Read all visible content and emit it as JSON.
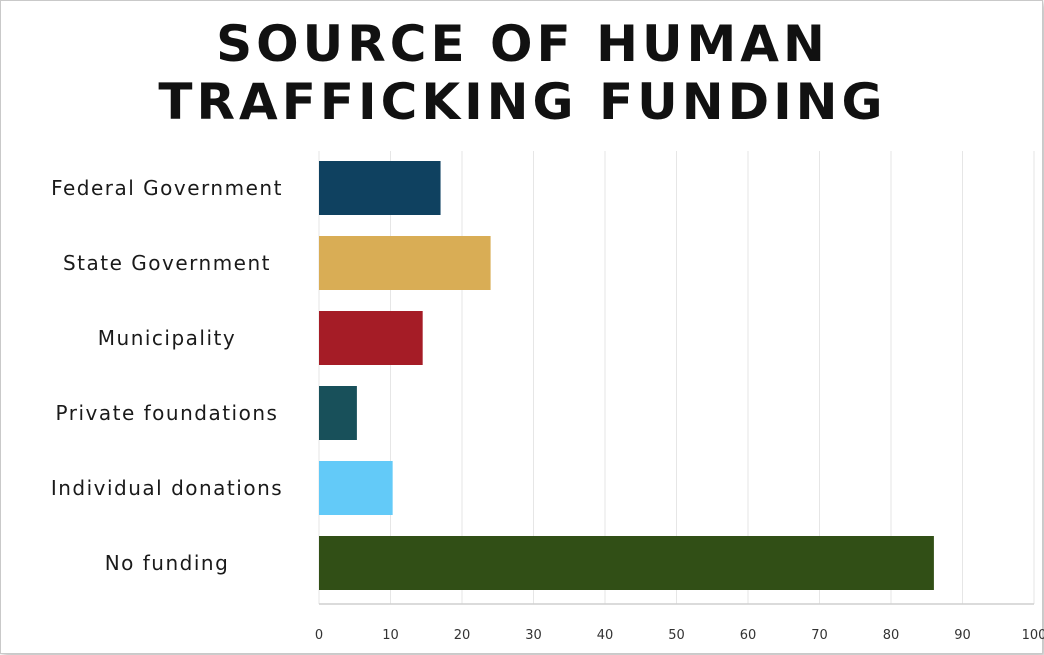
{
  "chart_data": {
    "type": "bar",
    "orientation": "horizontal",
    "title": "SOURCE OF HUMAN TRAFFICKING FUNDING",
    "xlabel": "",
    "ylabel": "",
    "categories": [
      "Federal Government",
      "State Government",
      "Municipality",
      "Private foundations",
      "Individual donations",
      "No funding"
    ],
    "values": [
      17,
      24,
      14.5,
      5.3,
      10.3,
      86
    ],
    "colors": [
      "#0f4160",
      "#d9ad55",
      "#a51c26",
      "#18505a",
      "#63caf8",
      "#314f16"
    ],
    "xlim": [
      0,
      100
    ],
    "xticks": [
      "0",
      "10",
      "20",
      "30",
      "40",
      "50",
      "60",
      "70",
      "80",
      "90",
      "100"
    ],
    "grid": true,
    "legend": "none"
  }
}
